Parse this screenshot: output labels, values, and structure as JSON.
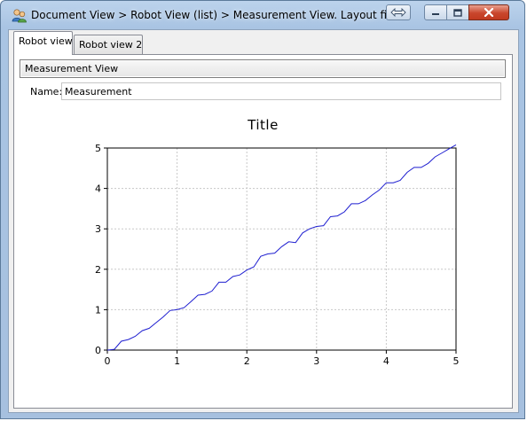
{
  "window": {
    "title": "Document View > Robot View (list) > Measurement View. Layout fine."
  },
  "icons": {
    "app": "users-icon",
    "swap": "swap-arrows-icon",
    "minimize": "minimize-icon",
    "maximize": "maximize-icon",
    "close": "close-icon"
  },
  "tabs": [
    {
      "label": "Robot view",
      "active": true
    },
    {
      "label": "Robot view 2",
      "active": false
    }
  ],
  "panel": {
    "section_label": "Measurement View",
    "name_label": "Name:",
    "name_value": "Measurement"
  },
  "colors": {
    "series": "#1f1fd0",
    "close_button": "#c9462c"
  },
  "chart_data": {
    "type": "line",
    "title": "Title",
    "xlabel": "",
    "ylabel": "",
    "xlim": [
      0,
      5
    ],
    "ylim": [
      0,
      5
    ],
    "xticks": [
      0,
      1,
      2,
      3,
      4,
      5
    ],
    "yticks": [
      0,
      1,
      2,
      3,
      4,
      5
    ],
    "grid": true,
    "series": [
      {
        "x": [
          0,
          0.1,
          0.2,
          0.3,
          0.4,
          0.5,
          0.6,
          0.7,
          0.8,
          0.9,
          1.0,
          1.1,
          1.2,
          1.3,
          1.4,
          1.5,
          1.6,
          1.7,
          1.8,
          1.9,
          2.0,
          2.1,
          2.2,
          2.3,
          2.4,
          2.5,
          2.6,
          2.7,
          2.8,
          2.9,
          3.0,
          3.1,
          3.2,
          3.3,
          3.4,
          3.5,
          3.6,
          3.7,
          3.8,
          3.9,
          4.0,
          4.1,
          4.2,
          4.3,
          4.4,
          4.5,
          4.6,
          4.7,
          4.8,
          4.9,
          5.0
        ],
        "y": [
          0,
          0.02,
          0.22,
          0.26,
          0.34,
          0.48,
          0.54,
          0.68,
          0.82,
          0.98,
          1.0,
          1.05,
          1.2,
          1.36,
          1.38,
          1.46,
          1.68,
          1.68,
          1.82,
          1.86,
          1.98,
          2.06,
          2.32,
          2.38,
          2.4,
          2.56,
          2.68,
          2.66,
          2.9,
          3.0,
          3.06,
          3.08,
          3.3,
          3.32,
          3.42,
          3.62,
          3.62,
          3.7,
          3.84,
          3.96,
          4.14,
          4.14,
          4.2,
          4.4,
          4.52,
          4.52,
          4.62,
          4.78,
          4.88,
          4.98,
          5.08
        ]
      }
    ]
  }
}
